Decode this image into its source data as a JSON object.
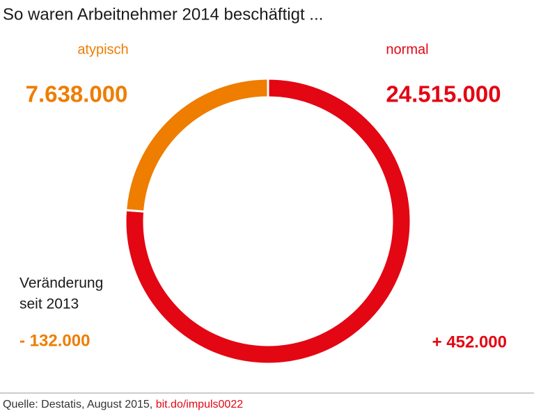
{
  "chart_data": {
    "type": "donut",
    "title": "So waren Arbeitnehmer 2014 beschäftigt ...",
    "categories": [
      "atypisch",
      "normal"
    ],
    "values": [
      7638000,
      24515000
    ],
    "value_labels": [
      "7.638.000",
      "24.515.000"
    ],
    "colors": [
      "#ee7d00",
      "#e30613"
    ],
    "change_title": [
      "Veränderung",
      "seit 2013"
    ],
    "change_labels": [
      "- 132.000",
      "+ 452.000"
    ],
    "source": "Quelle: Destatis, August 2015,",
    "source_link": "bit.do/impuls0022"
  }
}
